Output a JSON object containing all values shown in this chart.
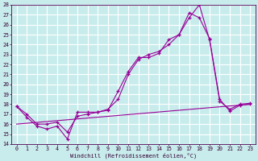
{
  "xlabel": "Windchill (Refroidissement éolien,°C)",
  "bg_color": "#c8ecec",
  "grid_color": "#ffffff",
  "line_color": "#990099",
  "xlim": [
    -0.5,
    23.5
  ],
  "ylim": [
    14,
    28
  ],
  "xticks": [
    0,
    1,
    2,
    3,
    4,
    5,
    6,
    7,
    8,
    9,
    10,
    11,
    12,
    13,
    14,
    15,
    16,
    17,
    18,
    19,
    20,
    21,
    22,
    23
  ],
  "yticks": [
    14,
    15,
    16,
    17,
    18,
    19,
    20,
    21,
    22,
    23,
    24,
    25,
    26,
    27,
    28
  ],
  "series": [
    {
      "x": [
        0,
        1,
        2,
        3,
        4,
        5,
        6,
        7,
        8,
        9,
        10,
        11,
        12,
        13,
        14,
        15,
        16,
        17,
        18,
        19,
        20,
        21,
        22,
        23
      ],
      "y": [
        17.8,
        16.7,
        15.8,
        15.5,
        15.8,
        14.5,
        17.2,
        17.2,
        17.2,
        17.4,
        19.3,
        21.3,
        22.7,
        22.7,
        23.1,
        24.5,
        25.0,
        27.2,
        26.7,
        24.6,
        18.5,
        17.3,
        17.9,
        18.0
      ],
      "has_markers": true
    },
    {
      "x": [
        0,
        1,
        2,
        3,
        4,
        5,
        6,
        7,
        8,
        9,
        10,
        11,
        12,
        13,
        14,
        15,
        16,
        17,
        18,
        19,
        20,
        21,
        22,
        23
      ],
      "y": [
        17.8,
        17.0,
        16.0,
        16.0,
        16.2,
        15.2,
        16.8,
        17.0,
        17.2,
        17.5,
        18.5,
        21.0,
        22.5,
        23.0,
        23.3,
        24.0,
        25.0,
        26.7,
        28.0,
        24.5,
        18.3,
        17.5,
        18.0,
        18.1
      ],
      "has_markers": true
    },
    {
      "x": [
        0,
        23
      ],
      "y": [
        16.0,
        18.0
      ],
      "has_markers": false
    }
  ]
}
